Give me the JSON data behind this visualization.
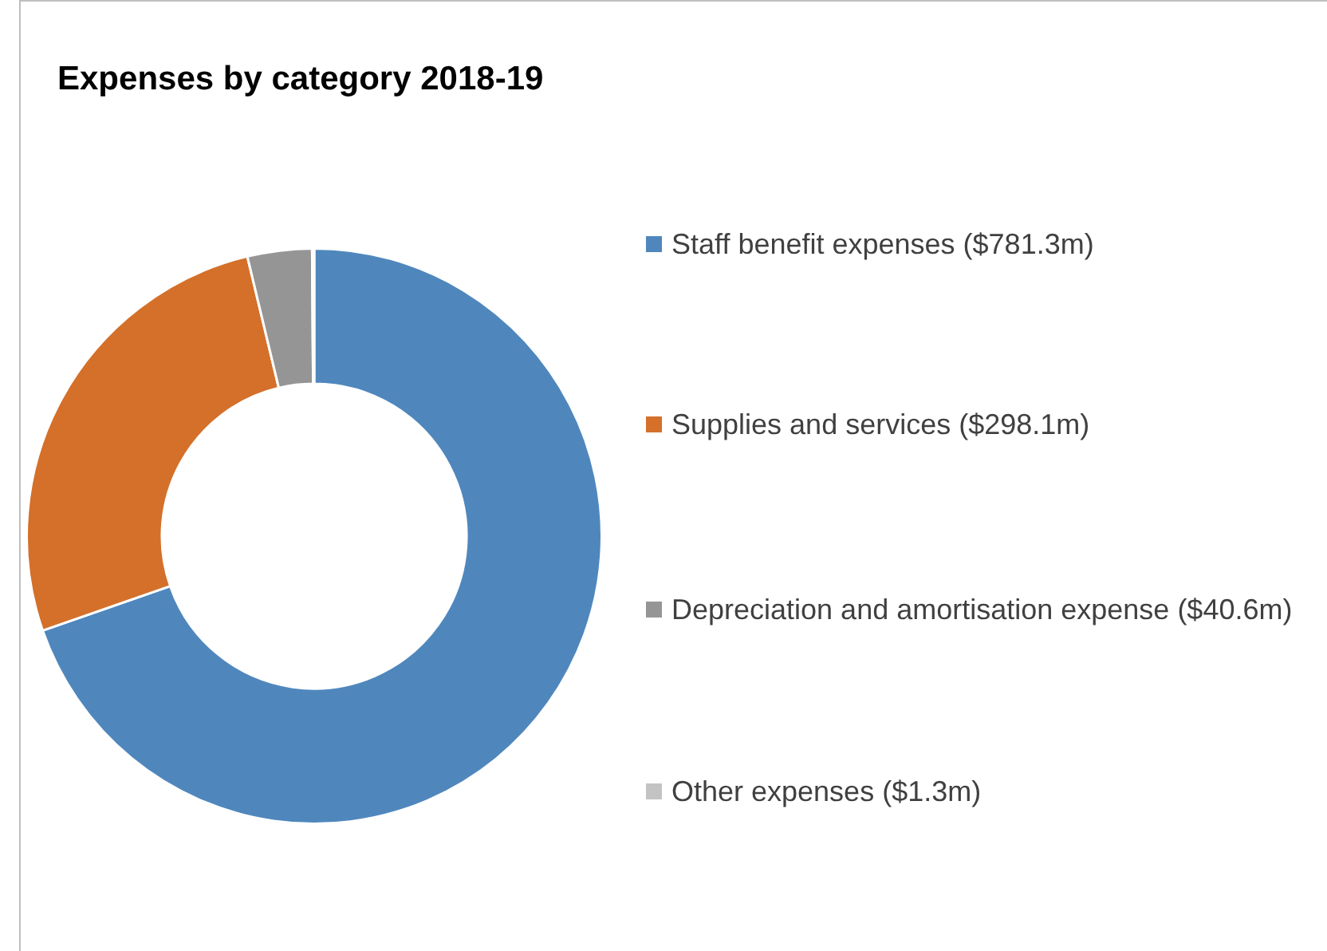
{
  "chart_data": {
    "type": "donut",
    "title": "Expenses by category 2018-19",
    "categories": [
      "Staff benefit expenses ($781.3m)",
      "Supplies and services ($298.1m)",
      "Depreciation and amortisation expense ($40.6m)",
      "Other expenses ($1.3m)"
    ],
    "values": [
      781.3,
      298.1,
      40.6,
      1.3
    ],
    "colors": [
      "#4f87bd",
      "#d4702a",
      "#959595",
      "#c3c3c3"
    ],
    "legend": "right"
  }
}
